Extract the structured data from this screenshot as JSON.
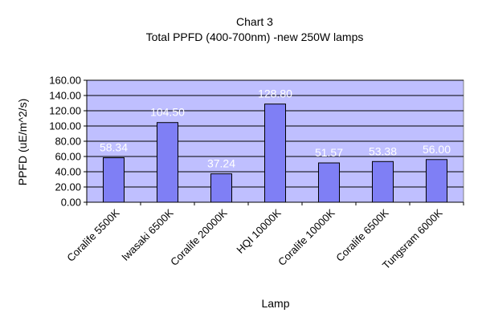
{
  "chart_data": {
    "type": "bar",
    "title": "Chart 3",
    "subtitle": "Total PPFD (400-700nm) -new 250W lamps",
    "xlabel": "Lamp",
    "ylabel": "PPFD (uE/m^2/s)",
    "categories": [
      "Coralife 5500K",
      "Iwasaki 6500K",
      "Coralife 20000K",
      "HQI 10000K",
      "Coralife 10000K",
      "Coralife 6500K",
      "Tungsram 6000K"
    ],
    "values": [
      58.34,
      104.5,
      37.24,
      128.8,
      51.57,
      53.38,
      56.0
    ],
    "data_labels": [
      "58.34",
      "104.50",
      "37.24",
      "128.80",
      "51.57",
      "53.38",
      "56.00"
    ],
    "yticks": [
      "0.00",
      "20.00",
      "40.00",
      "60.00",
      "80.00",
      "100.00",
      "120.00",
      "140.00",
      "160.00"
    ],
    "ylim": [
      0,
      160
    ],
    "grid": true,
    "legend": "none",
    "colors": {
      "bar": "#7F7FF5",
      "bar_border": "#000000",
      "plot_bg": "#BFBFFF",
      "label": "#FFFFFF"
    }
  }
}
